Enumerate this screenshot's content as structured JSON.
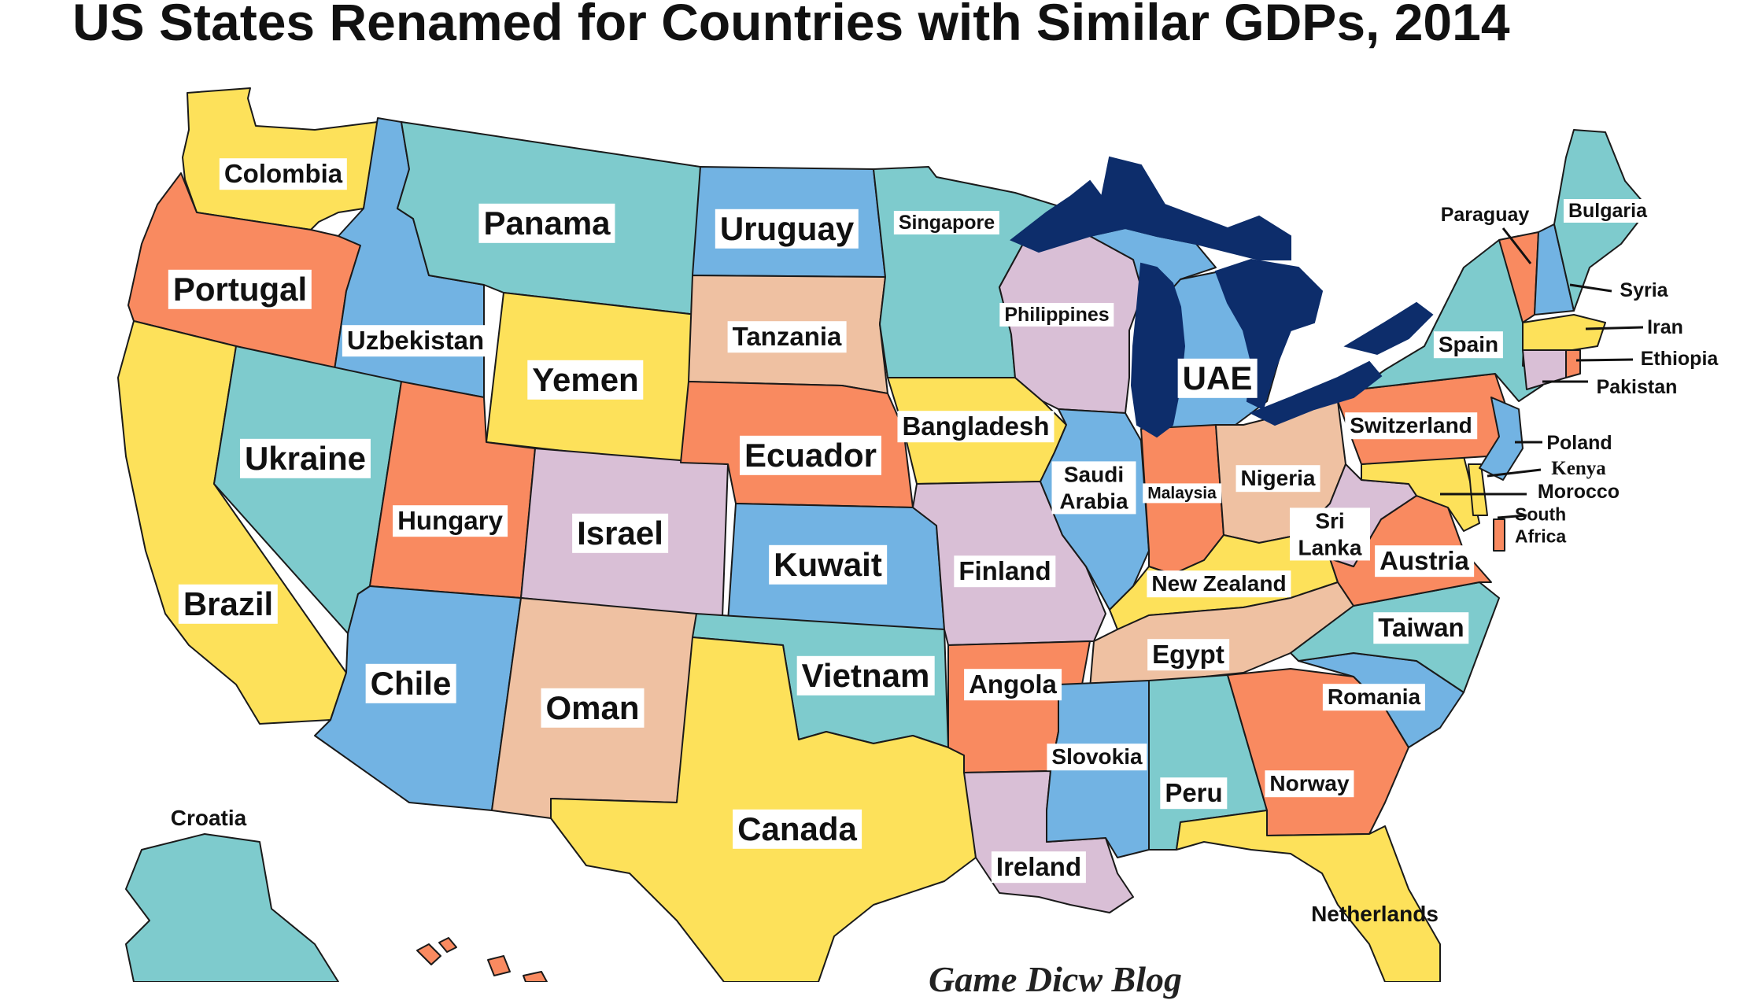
{
  "title": "US States Renamed for Countries with Similar GDPs, 2014",
  "credit": "Game Dicw Blog",
  "colors": {
    "yellow": "#fde15a",
    "teal": "#7ecbcd",
    "blue": "#72b3e3",
    "orange": "#f98a60",
    "tan": "#efc1a2",
    "lilac": "#d9bfd6",
    "lake": "#0d2d6b"
  },
  "states": [
    {
      "state": "Washington",
      "country": "Colombia"
    },
    {
      "state": "Oregon",
      "country": "Portugal"
    },
    {
      "state": "California",
      "country": "Brazil"
    },
    {
      "state": "Idaho",
      "country": "Uzbekistan"
    },
    {
      "state": "Nevada",
      "country": "Ukraine"
    },
    {
      "state": "Montana",
      "country": "Panama"
    },
    {
      "state": "Wyoming",
      "country": "Yemen"
    },
    {
      "state": "Utah",
      "country": "Hungary"
    },
    {
      "state": "Arizona",
      "country": "Chile"
    },
    {
      "state": "Colorado",
      "country": "Israel"
    },
    {
      "state": "New Mexico",
      "country": "Oman"
    },
    {
      "state": "North Dakota",
      "country": "Uruguay"
    },
    {
      "state": "South Dakota",
      "country": "Tanzania"
    },
    {
      "state": "Nebraska",
      "country": "Ecuador"
    },
    {
      "state": "Kansas",
      "country": "Kuwait"
    },
    {
      "state": "Oklahoma",
      "country": "Vietnam"
    },
    {
      "state": "Texas",
      "country": "Canada"
    },
    {
      "state": "Minnesota",
      "country": "Singapore"
    },
    {
      "state": "Iowa",
      "country": "Bangladesh"
    },
    {
      "state": "Missouri",
      "country": "Finland"
    },
    {
      "state": "Arkansas",
      "country": "Angola"
    },
    {
      "state": "Louisiana",
      "country": "Ireland"
    },
    {
      "state": "Wisconsin",
      "country": "Philippines"
    },
    {
      "state": "Illinois",
      "country": "Saudi Arabia"
    },
    {
      "state": "Michigan",
      "country": "UAE"
    },
    {
      "state": "Indiana",
      "country": "Malaysia"
    },
    {
      "state": "Ohio",
      "country": "Nigeria"
    },
    {
      "state": "Kentucky",
      "country": "New Zealand"
    },
    {
      "state": "Tennessee",
      "country": "Egypt"
    },
    {
      "state": "Mississippi",
      "country": "Slovokia"
    },
    {
      "state": "Alabama",
      "country": "Peru"
    },
    {
      "state": "Georgia",
      "country": "Norway"
    },
    {
      "state": "Florida",
      "country": "Netherlands"
    },
    {
      "state": "South Carolina",
      "country": "Romania"
    },
    {
      "state": "North Carolina",
      "country": "Taiwan"
    },
    {
      "state": "Virginia",
      "country": "Austria"
    },
    {
      "state": "West Virginia",
      "country": "Sri Lanka"
    },
    {
      "state": "Pennsylvania",
      "country": "Switzerland"
    },
    {
      "state": "New York",
      "country": "Spain"
    },
    {
      "state": "Vermont",
      "country": "Paraguay"
    },
    {
      "state": "Maine",
      "country": "Bulgaria"
    },
    {
      "state": "New Hampshire",
      "country": "Syria"
    },
    {
      "state": "Massachusetts",
      "country": "Iran"
    },
    {
      "state": "Rhode Island",
      "country": "Ethiopia"
    },
    {
      "state": "Connecticut",
      "country": "Pakistan"
    },
    {
      "state": "New Jersey",
      "country": "Poland"
    },
    {
      "state": "Delaware",
      "country": "Kenya"
    },
    {
      "state": "Maryland",
      "country": "Morocco"
    },
    {
      "state": "District of Columbia",
      "country": "South Africa"
    },
    {
      "state": "Alaska",
      "country": "Croatia"
    }
  ]
}
